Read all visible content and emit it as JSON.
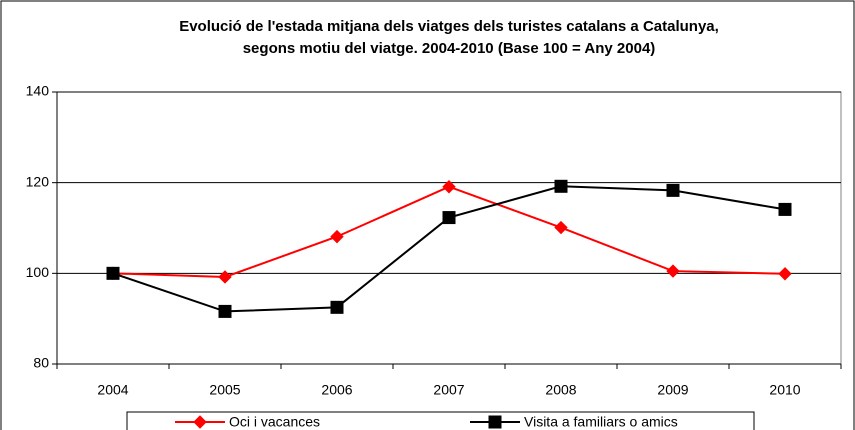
{
  "chart_data": {
    "type": "line",
    "title": "Evolució de l'estada mitjana dels viatges dels turistes catalans a Catalunya,",
    "subtitle": "segons motiu del viatge. 2004-2010 (Base 100 = Any 2004)",
    "categories": [
      "2004",
      "2005",
      "2006",
      "2007",
      "2008",
      "2009",
      "2010"
    ],
    "series": [
      {
        "name": "Oci i vacances",
        "color": "#ff0000",
        "marker": "diamond",
        "values": [
          100,
          99.2,
          108.1,
          119.1,
          110.1,
          100.5,
          99.9
        ]
      },
      {
        "name": "Visita a familiars o amics",
        "color": "#000000",
        "marker": "square",
        "values": [
          100,
          91.6,
          92.5,
          112.3,
          119.2,
          118.3,
          114.1
        ]
      }
    ],
    "ylim": [
      80,
      140
    ],
    "yticks": [
      80,
      100,
      120,
      140
    ],
    "grid": true,
    "legend": "bottom"
  }
}
